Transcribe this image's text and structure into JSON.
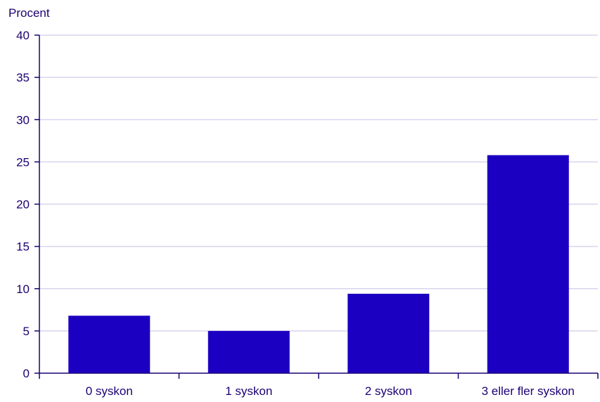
{
  "chart_data": {
    "type": "bar",
    "title": "",
    "ylabel": "Procent",
    "xlabel": "",
    "categories": [
      "0 syskon",
      "1 syskon",
      "2 syskon",
      "3 eller fler syskon"
    ],
    "values": [
      6.8,
      5.0,
      9.4,
      25.8
    ],
    "ylim": [
      0,
      40
    ],
    "yticks": [
      0,
      5,
      10,
      15,
      20,
      25,
      30,
      35,
      40
    ],
    "grid": true,
    "legend": "none",
    "colors": {
      "bar": "#1c00c1",
      "axis": "#1c0073",
      "grid": "#d8d4ee",
      "text": "#1c0073"
    }
  }
}
